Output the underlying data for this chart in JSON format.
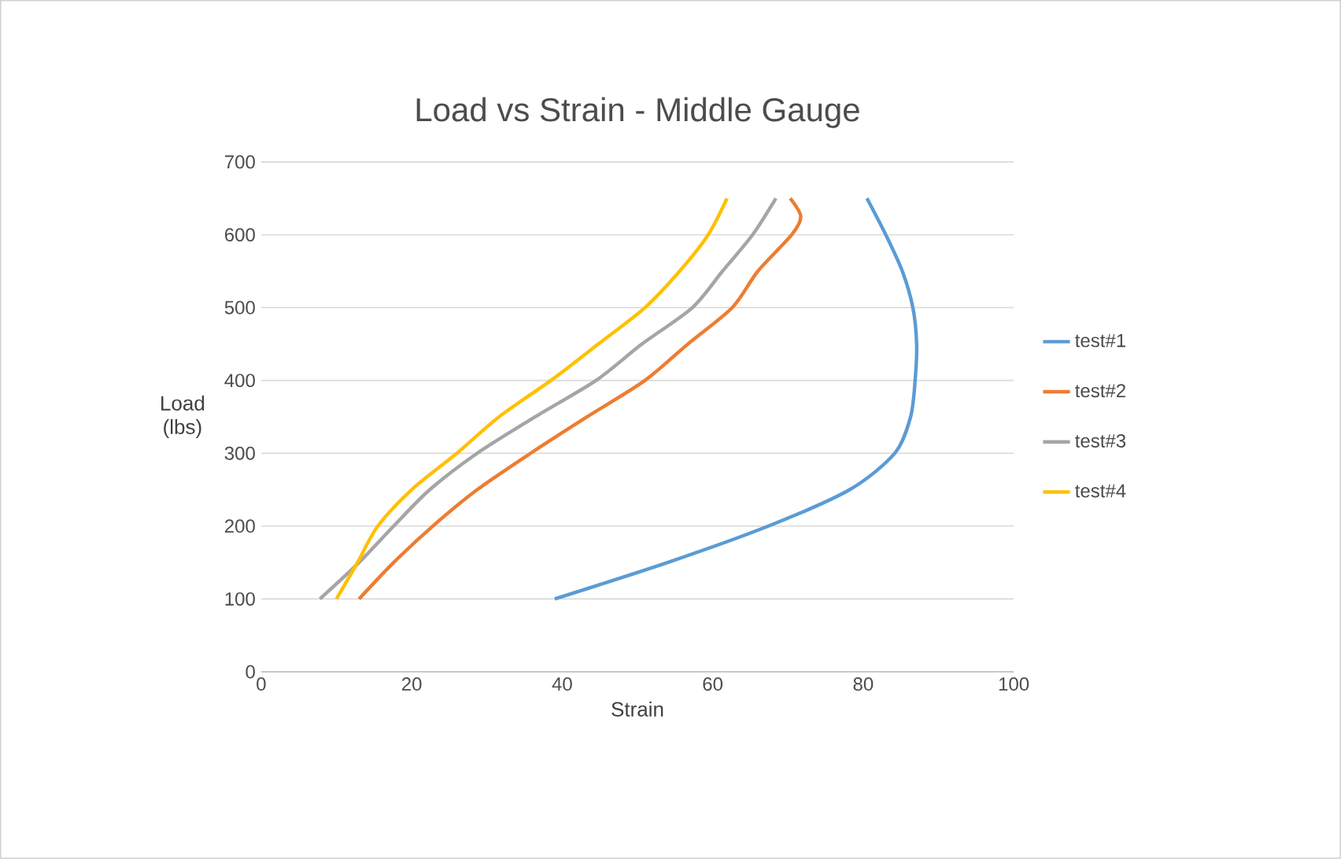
{
  "chart_data": {
    "type": "line",
    "title": "Load vs Strain - Middle Gauge",
    "xlabel": "Strain",
    "ylabel": "Load (lbs)",
    "xlim": [
      0,
      100
    ],
    "xticks": [
      0,
      20,
      40,
      60,
      80,
      100
    ],
    "ylim": [
      0,
      700
    ],
    "yticks": [
      0,
      100,
      200,
      300,
      400,
      500,
      600,
      700
    ],
    "grid": "y",
    "legend": "right",
    "series": [
      {
        "name": "test#1",
        "color": "#5b9bd5",
        "x": [
          39,
          54,
          67.4,
          78.2,
          84.2,
          86.3,
          86.9,
          87.1,
          86.6,
          85.2,
          83,
          80.5
        ],
        "values": [
          100,
          150,
          200,
          250,
          300,
          350,
          400,
          450,
          500,
          550,
          600,
          650
        ]
      },
      {
        "name": "test#2",
        "color": "#ed7d31",
        "x": [
          13,
          17.6,
          22.8,
          28.7,
          35.8,
          43.3,
          51,
          56.7,
          62.6,
          66,
          70.5,
          71.7,
          70.3
        ],
        "values": [
          100,
          150,
          200,
          250,
          300,
          350,
          400,
          450,
          500,
          550,
          600,
          625,
          650
        ]
      },
      {
        "name": "test#3",
        "color": "#a5a5a5",
        "x": [
          7.8,
          13,
          17.6,
          22.4,
          28.7,
          36.4,
          44.5,
          50.6,
          57.3,
          61.3,
          65.3,
          68.4
        ],
        "values": [
          100,
          150,
          200,
          250,
          300,
          350,
          400,
          450,
          500,
          550,
          600,
          650
        ]
      },
      {
        "name": "test#4",
        "color": "#ffc000",
        "x": [
          10,
          12.8,
          15.5,
          20,
          26,
          31.6,
          38.5,
          44.8,
          51,
          55.6,
          59.4,
          61.9
        ],
        "values": [
          100,
          150,
          200,
          250,
          300,
          350,
          400,
          450,
          500,
          550,
          600,
          650
        ]
      }
    ]
  }
}
